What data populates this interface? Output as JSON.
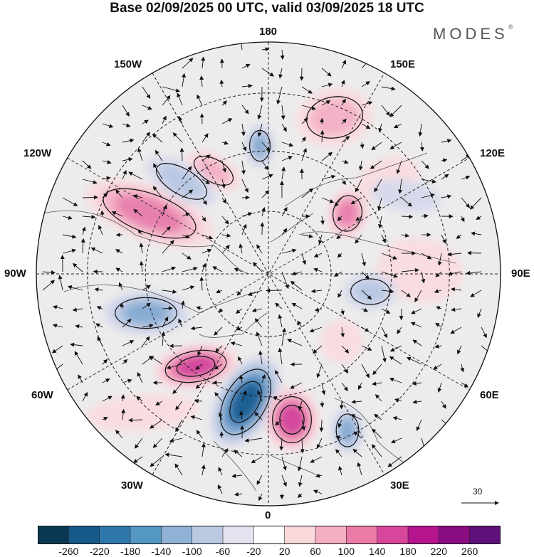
{
  "title": "Base 02/09/2025 00 UTC, valid 03/09/2025 18 UTC",
  "brand": "MODES",
  "brand_mark": "®",
  "longitude_labels": {
    "lon_180": "180",
    "lon_150w": "150W",
    "lon_150e": "150E",
    "lon_120w": "120W",
    "lon_120e": "120E",
    "lon_90w": "90W",
    "lon_90e": "90E",
    "lon_60w": "60W",
    "lon_60e": "60E",
    "lon_30w": "30W",
    "lon_30e": "30E",
    "lon_0": "0"
  },
  "reference_vector": {
    "label": "30"
  },
  "colorbar": {
    "levels": [
      "-260",
      "-220",
      "-180",
      "-140",
      "-100",
      "-60",
      "-20",
      "20",
      "60",
      "100",
      "140",
      "180",
      "220",
      "260"
    ],
    "colors": [
      "#0b3954",
      "#175a8a",
      "#2f78ad",
      "#5496c4",
      "#8fb2d6",
      "#bcc9e3",
      "#e4e3f0",
      "#ffffff",
      "#f9d9dc",
      "#f3aec0",
      "#ea7aa6",
      "#d7469b",
      "#b4148e",
      "#8a0d84",
      "#5e0f7a"
    ]
  },
  "anomaly_cells": [
    {
      "name": "alaska-positive",
      "sign": "positive",
      "strength": 3
    },
    {
      "name": "north-canada-positive",
      "sign": "positive",
      "strength": 2
    },
    {
      "name": "beaufort-negative",
      "sign": "negative",
      "strength": 2
    },
    {
      "name": "chukchi-negative",
      "sign": "negative",
      "strength": 3
    },
    {
      "name": "east-siberia-positive",
      "sign": "positive",
      "strength": 2
    },
    {
      "name": "kamchatka-positive",
      "sign": "positive",
      "strength": 1
    },
    {
      "name": "yakutia-positive",
      "sign": "positive",
      "strength": 3
    },
    {
      "name": "central-siberia-negative",
      "sign": "negative",
      "strength": 1
    },
    {
      "name": "west-siberia-positive",
      "sign": "positive",
      "strength": 1
    },
    {
      "name": "kara-negative",
      "sign": "negative",
      "strength": 2
    },
    {
      "name": "hudson-negative",
      "sign": "negative",
      "strength": 3
    },
    {
      "name": "labrador-positive",
      "sign": "positive",
      "strength": 4
    },
    {
      "name": "greenland-sea-negative",
      "sign": "negative",
      "strength": 5
    },
    {
      "name": "norway-positive",
      "sign": "positive",
      "strength": 4
    },
    {
      "name": "baltic-negative",
      "sign": "negative",
      "strength": 3
    },
    {
      "name": "ural-positive",
      "sign": "positive",
      "strength": 1
    },
    {
      "name": "north-atlantic-positive",
      "sign": "positive",
      "strength": 1
    }
  ]
}
